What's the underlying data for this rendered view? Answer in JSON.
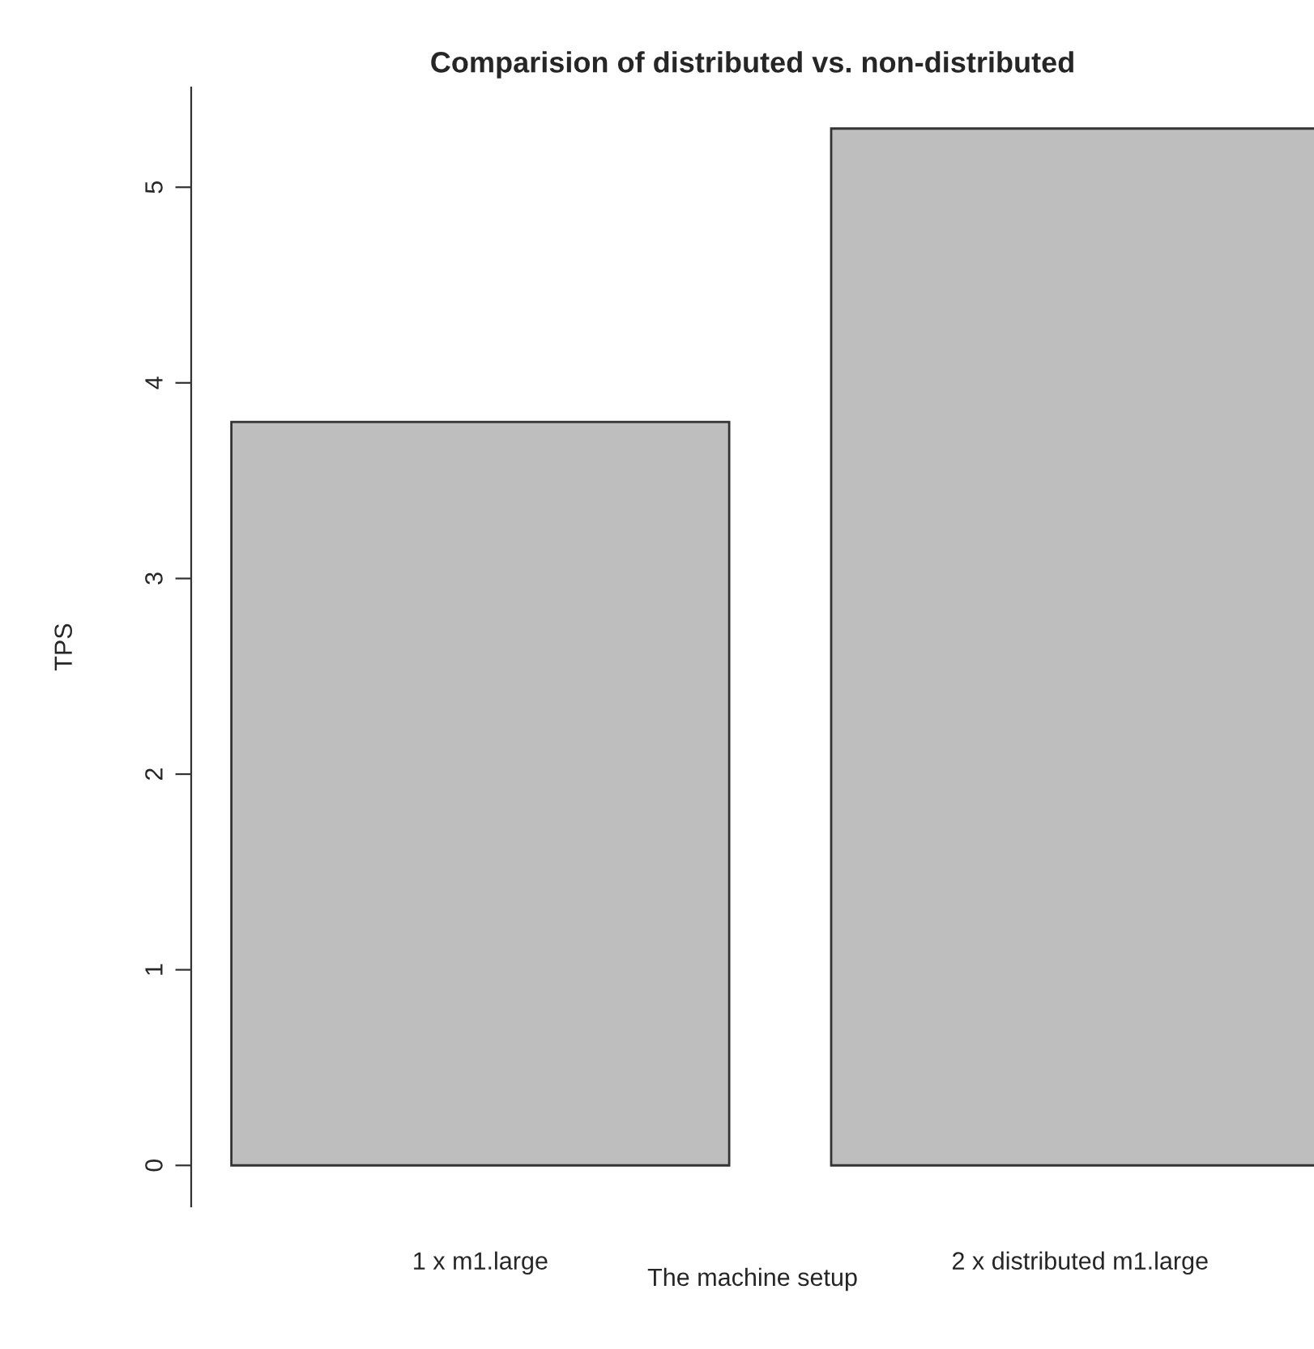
{
  "chart_data": {
    "type": "bar",
    "title": "Comparision of distributed vs. non-distributed",
    "xlabel": "The machine setup",
    "ylabel": "TPS",
    "categories": [
      "1 x m1.large",
      "2 x distributed m1.large"
    ],
    "values": [
      3.8,
      5.3
    ],
    "color": "#bebebe",
    "ylim": [
      -0.21,
      5.51
    ],
    "yticks": [
      0,
      1,
      2,
      3,
      4,
      5
    ],
    "grid": false
  }
}
